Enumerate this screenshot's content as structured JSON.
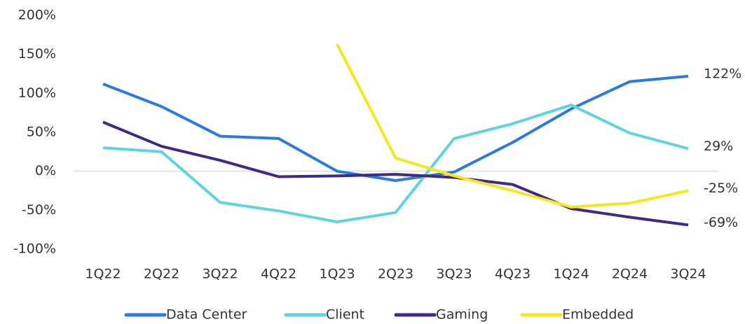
{
  "chart_data": {
    "type": "line",
    "categories": [
      "1Q22",
      "2Q22",
      "3Q22",
      "4Q22",
      "1Q23",
      "2Q23",
      "3Q23",
      "4Q23",
      "1Q24",
      "2Q24",
      "3Q24"
    ],
    "series": [
      {
        "name": "Data Center",
        "color": "#2b7bde",
        "values": [
          112,
          83,
          45,
          42,
          0,
          -12,
          -1,
          37,
          80,
          115,
          122
        ],
        "value_labels": [
          null,
          null,
          null,
          null,
          null,
          null,
          null,
          null,
          null,
          null,
          "122%"
        ]
      },
      {
        "name": "Client",
        "color": "#5fd3e0",
        "values": [
          30,
          25,
          -40,
          -51,
          -65,
          -53,
          42,
          61,
          85,
          49,
          29
        ],
        "value_labels": [
          null,
          null,
          null,
          null,
          null,
          null,
          null,
          null,
          null,
          null,
          "29%"
        ]
      },
      {
        "name": "Gaming",
        "color": "#3f2a84",
        "values": [
          63,
          32,
          14,
          -7,
          -6,
          -4,
          -8,
          -17,
          -48,
          -59,
          -69
        ],
        "value_labels": [
          null,
          null,
          null,
          null,
          null,
          null,
          null,
          null,
          null,
          null,
          "-69%"
        ]
      },
      {
        "name": "Embedded",
        "color": "#f5e71d",
        "values": [
          null,
          null,
          null,
          null,
          163,
          17,
          -6,
          -25,
          -46,
          -41,
          -25
        ],
        "value_labels": [
          null,
          null,
          null,
          null,
          null,
          null,
          null,
          null,
          null,
          null,
          "-25%"
        ]
      }
    ],
    "ylim": [
      -100,
      200
    ],
    "yticks": [
      {
        "value": -100,
        "label": "-100%"
      },
      {
        "value": -50,
        "label": "-50%"
      },
      {
        "value": 0,
        "label": "0%"
      },
      {
        "value": 50,
        "label": "50%"
      },
      {
        "value": 100,
        "label": "100%"
      },
      {
        "value": 150,
        "label": "150%"
      },
      {
        "value": 200,
        "label": "200%"
      }
    ],
    "grid": false,
    "legend": "bottom"
  }
}
